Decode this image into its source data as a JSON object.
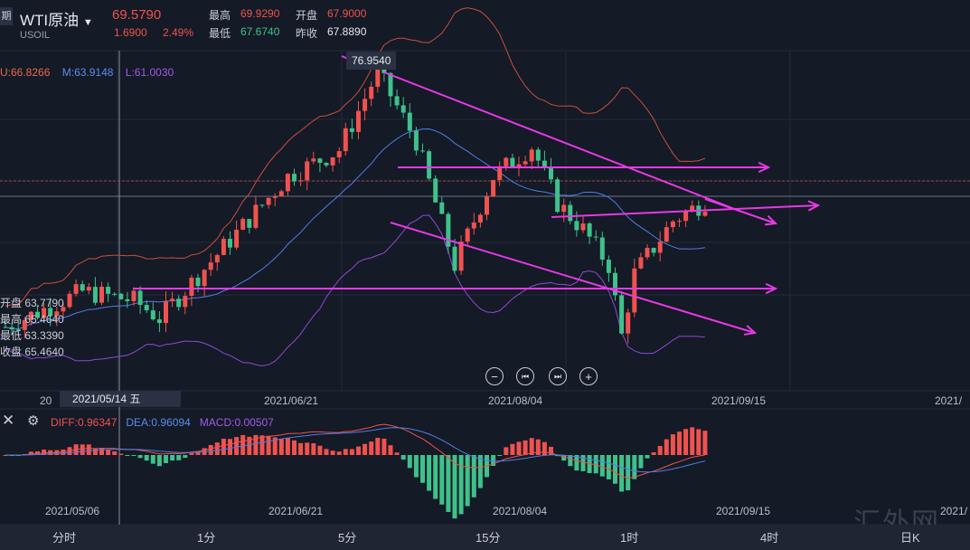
{
  "header": {
    "symbol": "WTI原油",
    "symbol_code": "USOIL",
    "tab_icon": "期",
    "price": "69.5790",
    "change": "1.6900",
    "change_pct": "2.49%",
    "high_label": "最高",
    "high": "69.9290",
    "open_label": "开盘",
    "open": "67.9000",
    "low_label": "最低",
    "low": "67.6740",
    "prev_close_label": "昨收",
    "prev_close": "67.8890"
  },
  "indicators": {
    "boll_u": "U:66.8266",
    "boll_m": "M:63.9148",
    "boll_l": "L:61.0030",
    "peak_label": "76.9540"
  },
  "ohlc_panel": {
    "open": "开盘 63.7790",
    "high": "最高 65.4640",
    "low": "最低 63.3390",
    "close": "收盘 65.4640"
  },
  "main_axis": {
    "d0": "20",
    "selected": "2021/05/14 五",
    "d1": "2021/06/21",
    "d2": "2021/08/04",
    "d3": "2021/09/15",
    "d4": "2021/"
  },
  "macd": {
    "diff": "DIFF:0.96347",
    "dea": "DEA:0.96094",
    "macd": "MACD:0.00507"
  },
  "macd_axis": {
    "d0": "2021/05/06",
    "d1": "2021/06/21",
    "d2": "2021/08/04",
    "d3": "2021/09/15",
    "d4": "2021/"
  },
  "timeframes": [
    "分时",
    "1分",
    "5分",
    "15分",
    "1时",
    "4时",
    "日K"
  ],
  "watermark": "汇外网",
  "colors": {
    "up": "#f0524f",
    "down": "#3fc18a",
    "boll_upper": "#c8503c",
    "boll_mid": "#4d7fe8",
    "boll_lower": "#8f49d9",
    "trendline": "#e838e6",
    "bg": "#141a26"
  },
  "chart_data": {
    "type": "candlestick",
    "price_range": [
      59,
      78
    ],
    "bar_count": 110,
    "seed_close": 62.5,
    "peak": 76.954,
    "current": 69.579,
    "indicators": [
      "BOLL",
      "MACD"
    ]
  }
}
